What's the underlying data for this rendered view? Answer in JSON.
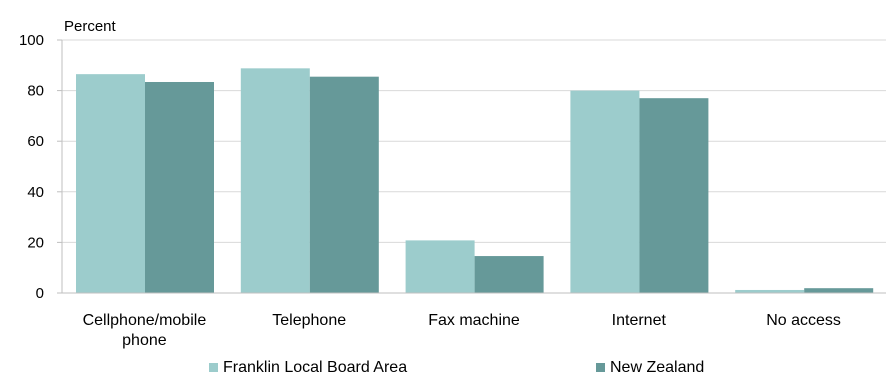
{
  "chart_data": {
    "type": "bar",
    "ylabel": "Percent",
    "ylim": [
      0,
      100
    ],
    "yticks": [
      0,
      20,
      40,
      60,
      80,
      100
    ],
    "grid": true,
    "legend_position": "bottom",
    "categories": [
      [
        "Cellphone/mobile",
        "phone"
      ],
      [
        "Telephone"
      ],
      [
        "Fax machine"
      ],
      [
        "Internet"
      ],
      [
        "No access"
      ]
    ],
    "series": [
      {
        "name": "Franklin Local Board Area",
        "color": "#9ccccc",
        "values": [
          86.5,
          88.8,
          20.8,
          80.0,
          1.2
        ]
      },
      {
        "name": "New Zealand",
        "color": "#669999",
        "values": [
          83.4,
          85.5,
          14.6,
          77.0,
          1.9
        ]
      }
    ]
  }
}
